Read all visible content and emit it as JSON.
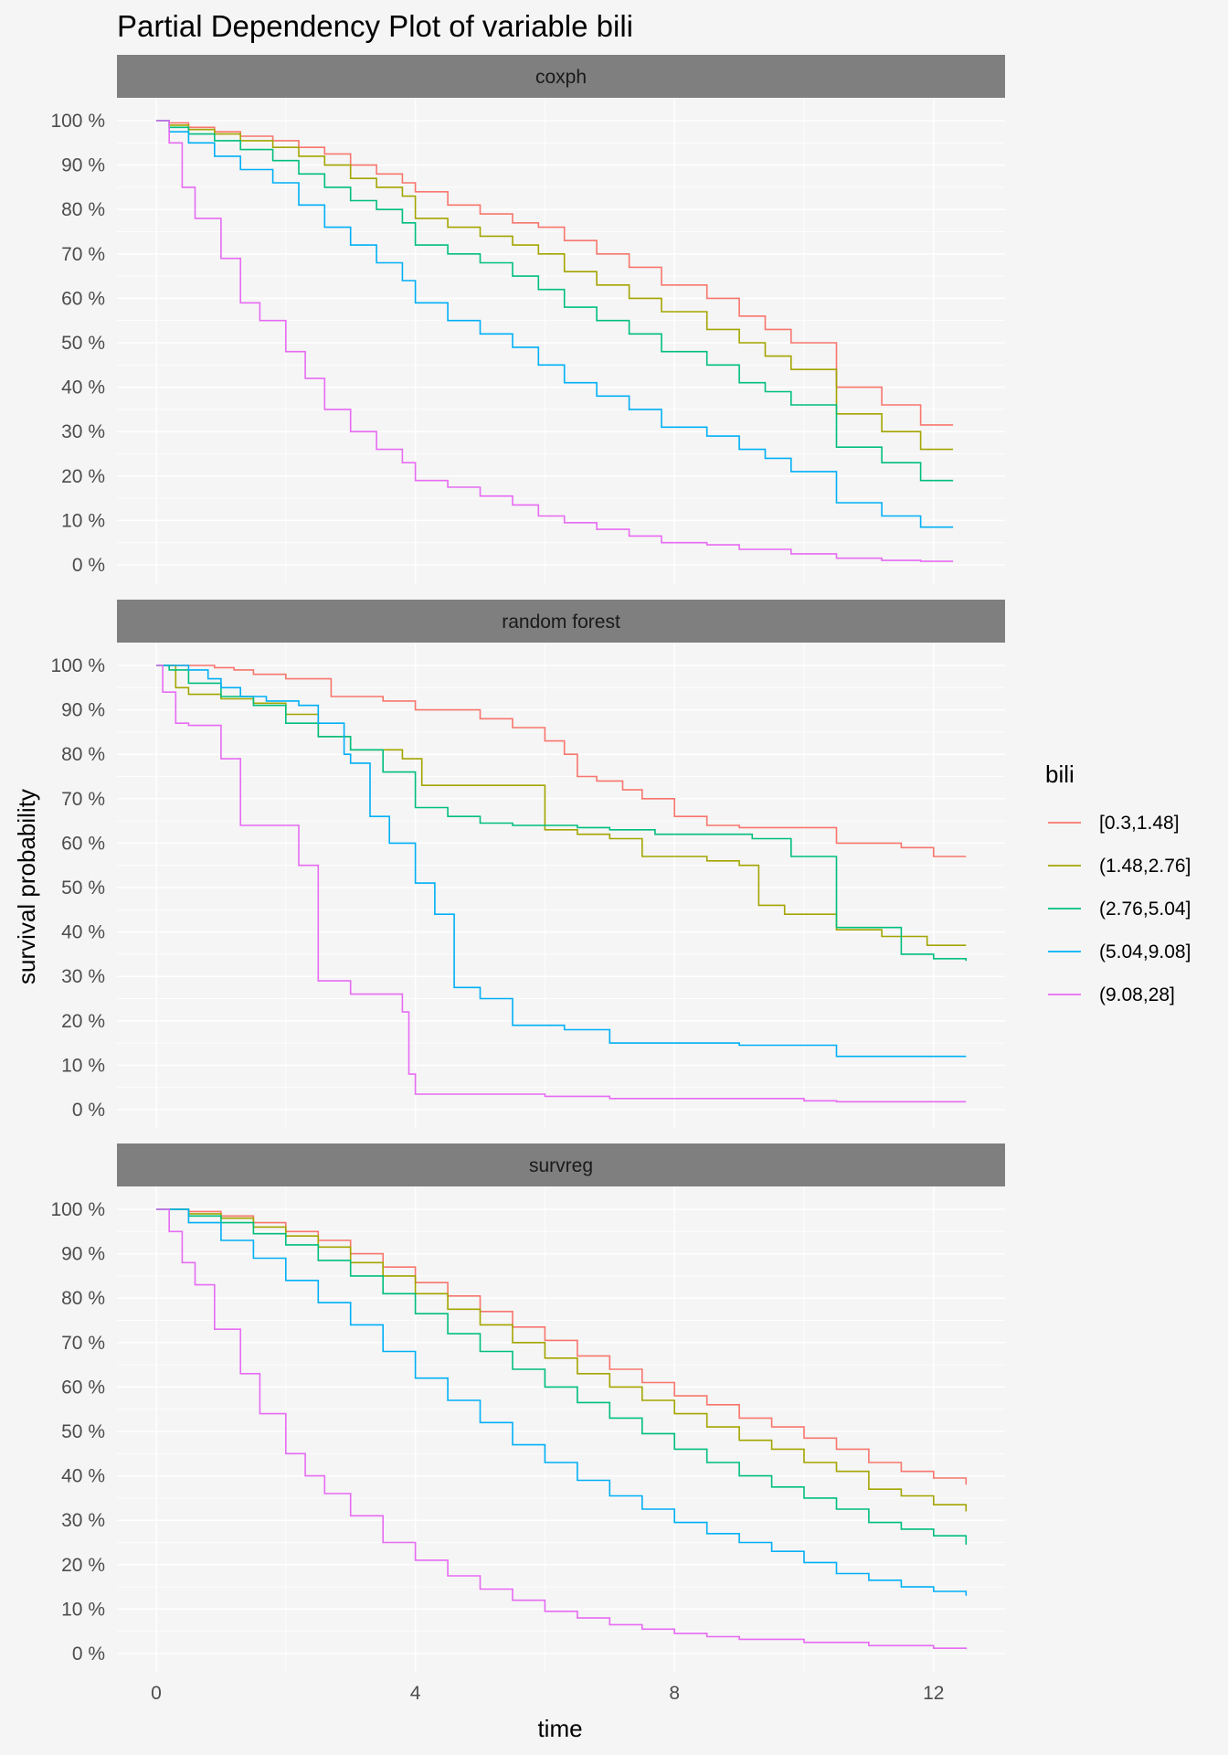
{
  "chart_data": {
    "type": "line",
    "title": "Partial Dependency Plot of variable bili",
    "xlabel": "time",
    "ylabel": "survival probability",
    "xlim": [
      0,
      12.5
    ],
    "ylim": [
      0,
      100
    ],
    "x_ticks": [
      "0",
      "4",
      "8",
      "12"
    ],
    "y_ticks": [
      "0 %",
      "10 %",
      "20 %",
      "30 %",
      "40 %",
      "50 %",
      "60 %",
      "70 %",
      "80 %",
      "90 %",
      "100 %"
    ],
    "grid": true,
    "legend": {
      "title": "bili",
      "position": "right",
      "entries": [
        {
          "label": "[0.3,1.48]",
          "color": "#F8766D"
        },
        {
          "label": "(1.48,2.76]",
          "color": "#A3A500"
        },
        {
          "label": "(2.76,5.04]",
          "color": "#00BF7D"
        },
        {
          "label": "(5.04,9.08]",
          "color": "#00B0F6"
        },
        {
          "label": "(9.08,28]",
          "color": "#E76BF3"
        }
      ]
    },
    "panels": [
      {
        "name": "coxph",
        "series": [
          {
            "name": "[0.3,1.48]",
            "x": [
              0,
              0.2,
              0.5,
              0.9,
              1.3,
              1.8,
              2.2,
              2.6,
              3,
              3.4,
              3.8,
              4,
              4.5,
              5,
              5.5,
              5.9,
              6.3,
              6.8,
              7.3,
              7.8,
              8.5,
              9,
              9.4,
              9.8,
              10.5,
              11.2,
              11.8,
              12.3
            ],
            "y": [
              100,
              99.5,
              98.5,
              97.5,
              96.5,
              95.5,
              94,
              92.5,
              90,
              88,
              86,
              84,
              81,
              79,
              77,
              76,
              73,
              70,
              67,
              63,
              60,
              56,
              53,
              50,
              40,
              36,
              31.5,
              31.5
            ]
          },
          {
            "name": "(1.48,2.76]",
            "x": [
              0,
              0.2,
              0.5,
              0.9,
              1.3,
              1.8,
              2.2,
              2.6,
              3,
              3.4,
              3.8,
              4,
              4.5,
              5,
              5.5,
              5.9,
              6.3,
              6.8,
              7.3,
              7.8,
              8.5,
              9,
              9.4,
              9.8,
              10.5,
              11.2,
              11.8,
              12.3
            ],
            "y": [
              100,
              99,
              98,
              97,
              95.5,
              94,
              92,
              90,
              87,
              85,
              83,
              78,
              76,
              74,
              72,
              70,
              66,
              63,
              60,
              57,
              53,
              50,
              47,
              44,
              34,
              30,
              26,
              26
            ]
          },
          {
            "name": "(2.76,5.04]",
            "x": [
              0,
              0.2,
              0.5,
              0.9,
              1.3,
              1.8,
              2.2,
              2.6,
              3,
              3.4,
              3.8,
              4,
              4.5,
              5,
              5.5,
              5.9,
              6.3,
              6.8,
              7.3,
              7.8,
              8.5,
              9,
              9.4,
              9.8,
              10.5,
              11.2,
              11.8,
              12.3
            ],
            "y": [
              100,
              98.5,
              97,
              95.5,
              93.5,
              91,
              88,
              85,
              82,
              80,
              77,
              72,
              70,
              68,
              65,
              62,
              58,
              55,
              52,
              48,
              45,
              41,
              39,
              36,
              26.5,
              23,
              19,
              19
            ]
          },
          {
            "name": "(5.04,9.08]",
            "x": [
              0,
              0.2,
              0.5,
              0.9,
              1.3,
              1.8,
              2.2,
              2.6,
              3,
              3.4,
              3.8,
              4,
              4.5,
              5,
              5.5,
              5.9,
              6.3,
              6.8,
              7.3,
              7.8,
              8.5,
              9,
              9.4,
              9.8,
              10.5,
              11.2,
              11.8,
              12.3
            ],
            "y": [
              100,
              97.5,
              95,
              92,
              89,
              86,
              81,
              76,
              72,
              68,
              64,
              59,
              55,
              52,
              49,
              45,
              41,
              38,
              35,
              31,
              29,
              26,
              24,
              21,
              14,
              11,
              8.5,
              8.5
            ]
          },
          {
            "name": "(9.08,28]",
            "x": [
              0,
              0.2,
              0.4,
              0.6,
              1,
              1.3,
              1.6,
              2,
              2.3,
              2.6,
              3,
              3.4,
              3.8,
              4,
              4.5,
              5,
              5.5,
              5.9,
              6.3,
              6.8,
              7.3,
              7.8,
              8.5,
              9,
              9.8,
              10.5,
              11.2,
              11.8,
              12.3
            ],
            "y": [
              100,
              95,
              85,
              78,
              69,
              59,
              55,
              48,
              42,
              35,
              30,
              26,
              23,
              19,
              17.5,
              15.5,
              13.5,
              11,
              9.5,
              8,
              6.5,
              5,
              4.5,
              3.5,
              2.5,
              1.5,
              1,
              0.8,
              0.8
            ]
          }
        ]
      },
      {
        "name": "random forest",
        "series": [
          {
            "name": "[0.3,1.48]",
            "x": [
              0,
              0.5,
              0.9,
              1.2,
              1.5,
              2,
              2.7,
              3.5,
              4,
              5,
              5.5,
              6,
              6.3,
              6.5,
              6.8,
              7.2,
              7.5,
              8,
              8.5,
              9,
              9.8,
              10.5,
              11.5,
              12,
              12.5
            ],
            "y": [
              100,
              100,
              99.5,
              99,
              98,
              97,
              93,
              92,
              90,
              88,
              86,
              83,
              80,
              75,
              74,
              72,
              70,
              66,
              64,
              63.5,
              63.5,
              60,
              59,
              57,
              57
            ]
          },
          {
            "name": "(1.48,2.76]",
            "x": [
              0,
              0.3,
              0.5,
              1,
              1.5,
              2,
              2.5,
              3,
              3.8,
              4.1,
              4.5,
              5,
              5.9,
              6,
              6.5,
              7,
              7.5,
              8.5,
              9,
              9.3,
              9.7,
              10.5,
              11.2,
              11.9,
              12.5
            ],
            "y": [
              100,
              95,
              93.5,
              92.5,
              91.5,
              89,
              84,
              81,
              79,
              73,
              73,
              73,
              73,
              63,
              62,
              61,
              57,
              56,
              55,
              46,
              44,
              40.5,
              39,
              37,
              37
            ]
          },
          {
            "name": "(2.76,5.04]",
            "x": [
              0,
              0.2,
              0.5,
              1,
              1.5,
              2,
              2.5,
              3,
              3.5,
              4,
              4.5,
              5,
              5.5,
              6,
              6.5,
              7,
              7.7,
              8.5,
              9.2,
              9.8,
              10.5,
              11.5,
              12,
              12.5
            ],
            "y": [
              100,
              99,
              96,
              93,
              91,
              87,
              84,
              81,
              76,
              68,
              66,
              64.5,
              64,
              64,
              63.5,
              63,
              62,
              62,
              61,
              57,
              41,
              35,
              34,
              33.5
            ]
          },
          {
            "name": "(5.04,9.08]",
            "x": [
              0,
              0.5,
              0.8,
              1,
              1.3,
              1.7,
              2.2,
              2.5,
              2.9,
              3,
              3.3,
              3.6,
              4,
              4.3,
              4.6,
              5,
              5.5,
              6,
              6.3,
              7,
              8,
              9,
              10.5,
              12,
              12.5
            ],
            "y": [
              100,
              99,
              97,
              95,
              93,
              92,
              91,
              87,
              80,
              78,
              66,
              60,
              51,
              44,
              27.5,
              25,
              19,
              19,
              18,
              15,
              15,
              14.5,
              12,
              12,
              12
            ]
          },
          {
            "name": "(9.08,28]",
            "x": [
              0,
              0.1,
              0.3,
              0.5,
              1,
              1.3,
              1.8,
              2.2,
              2.5,
              2.6,
              3,
              3.5,
              3.8,
              3.9,
              4,
              4.5,
              5,
              5.5,
              6,
              6.5,
              7,
              8,
              9,
              10,
              10.5,
              12,
              12.5
            ],
            "y": [
              100,
              94,
              87,
              86.5,
              79,
              64,
              64,
              55,
              29,
              29,
              26,
              26,
              22,
              8,
              3.5,
              3.5,
              3.5,
              3.5,
              3,
              3,
              2.5,
              2.5,
              2.5,
              2,
              1.8,
              1.8,
              1.8
            ]
          }
        ]
      },
      {
        "name": "survreg",
        "series": [
          {
            "name": "[0.3,1.48]",
            "x": [
              0,
              0.5,
              1,
              1.5,
              2,
              2.5,
              3,
              3.5,
              4,
              4.5,
              5,
              5.5,
              6,
              6.5,
              7,
              7.5,
              8,
              8.5,
              9,
              9.5,
              10,
              10.5,
              11,
              11.5,
              12,
              12.5
            ],
            "y": [
              100,
              99.5,
              98.5,
              97,
              95,
              93,
              90,
              87,
              83.5,
              80.5,
              77,
              73.5,
              70.5,
              67,
              64,
              61,
              58,
              56,
              53,
              51,
              48.5,
              46,
              43,
              41,
              39.5,
              38
            ]
          },
          {
            "name": "(1.48,2.76]",
            "x": [
              0,
              0.5,
              1,
              1.5,
              2,
              2.5,
              3,
              3.5,
              4,
              4.5,
              5,
              5.5,
              6,
              6.5,
              7,
              7.5,
              8,
              8.5,
              9,
              9.5,
              10,
              10.5,
              11,
              11.5,
              12,
              12.5
            ],
            "y": [
              100,
              99,
              98,
              96,
              94,
              91.5,
              88,
              85,
              81,
              77.5,
              74,
              70,
              66.5,
              63,
              60,
              57,
              54,
              51,
              48,
              46,
              43,
              41,
              37,
              35.5,
              33.5,
              32
            ]
          },
          {
            "name": "(2.76,5.04]",
            "x": [
              0,
              0.5,
              1,
              1.5,
              2,
              2.5,
              3,
              3.5,
              4,
              4.5,
              5,
              5.5,
              6,
              6.5,
              7,
              7.5,
              8,
              8.5,
              9,
              9.5,
              10,
              10.5,
              11,
              11.5,
              12,
              12.5
            ],
            "y": [
              100,
              98.5,
              97,
              94.5,
              92,
              88.5,
              85,
              81,
              76.5,
              72,
              68,
              64,
              60,
              56.5,
              53,
              49.5,
              46,
              43,
              40,
              37.5,
              35,
              32.5,
              29.5,
              28,
              26.5,
              24.5
            ]
          },
          {
            "name": "(5.04,9.08]",
            "x": [
              0,
              0.5,
              1,
              1.5,
              2,
              2.5,
              3,
              3.5,
              4,
              4.5,
              5,
              5.5,
              6,
              6.5,
              7,
              7.5,
              8,
              8.5,
              9,
              9.5,
              10,
              10.5,
              11,
              11.5,
              12,
              12.5
            ],
            "y": [
              100,
              97,
              93,
              89,
              84,
              79,
              74,
              68,
              62,
              57,
              52,
              47,
              43,
              39,
              35.5,
              32.5,
              29.5,
              27,
              25,
              23,
              20.5,
              18,
              16.5,
              15,
              14,
              13
            ]
          },
          {
            "name": "(9.08,28]",
            "x": [
              0,
              0.2,
              0.4,
              0.6,
              0.9,
              1.3,
              1.6,
              2,
              2.3,
              2.6,
              3,
              3.5,
              4,
              4.5,
              5,
              5.5,
              6,
              6.5,
              7,
              7.5,
              8,
              8.5,
              9,
              10,
              11,
              12,
              12.5
            ],
            "y": [
              100,
              95,
              88,
              83,
              73,
              63,
              54,
              45,
              40,
              36,
              31,
              25,
              21,
              17.5,
              14.5,
              12,
              9.5,
              8,
              6.5,
              5.5,
              4.5,
              3.8,
              3.2,
              2.5,
              1.8,
              1.2,
              1
            ]
          }
        ]
      }
    ]
  }
}
